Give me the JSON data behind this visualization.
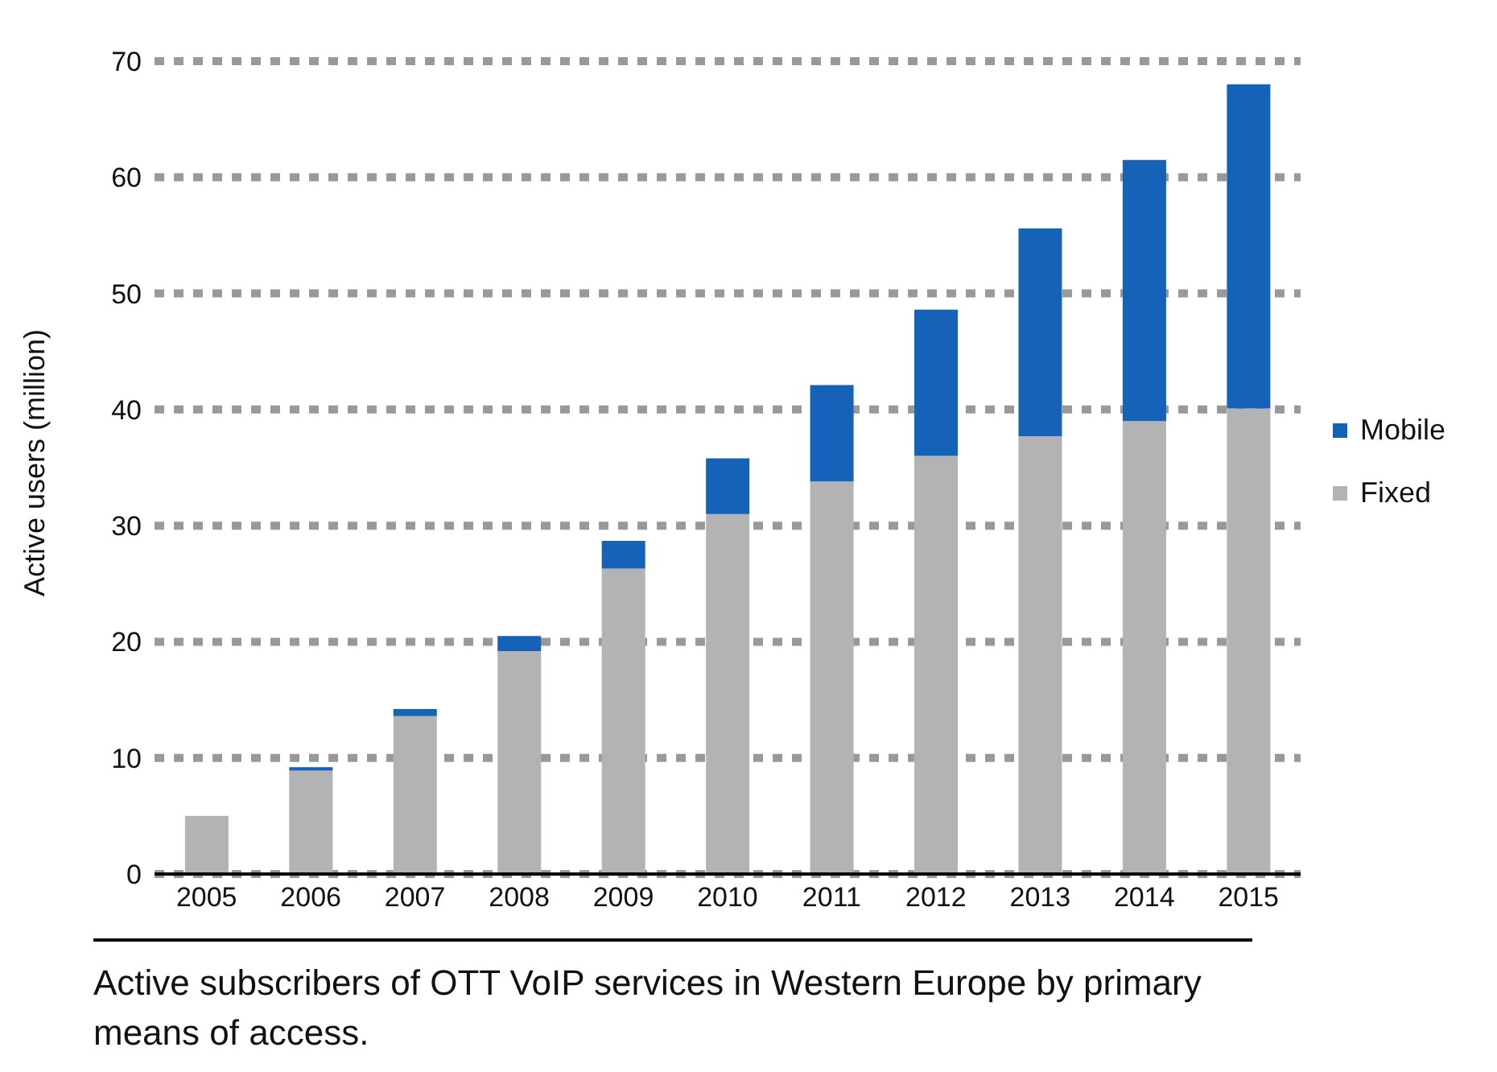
{
  "chart_data": {
    "type": "bar",
    "title": "Active subscribers of OTT VoIP services in Western Europe by primary means of access.",
    "ylabel": "Active users (million)",
    "categories": [
      "2005",
      "2006",
      "2007",
      "2008",
      "2009",
      "2010",
      "2011",
      "2012",
      "2013",
      "2014",
      "2015"
    ],
    "series": [
      {
        "name": "Fixed",
        "color": "#b3b3b3",
        "values": [
          5,
          8.9,
          13.6,
          19.2,
          26.3,
          31.0,
          33.8,
          36.0,
          37.7,
          39.0,
          40.1
        ]
      },
      {
        "name": "Mobile",
        "color": "#1562b8",
        "values": [
          0,
          0.3,
          0.6,
          1.3,
          2.4,
          4.8,
          8.3,
          12.6,
          17.9,
          22.5,
          27.9
        ]
      }
    ],
    "stacked": true,
    "ylim": [
      0,
      70
    ],
    "yticks": [
      0,
      10,
      20,
      30,
      40,
      50,
      60,
      70
    ],
    "grid": "y",
    "legend": "right"
  }
}
